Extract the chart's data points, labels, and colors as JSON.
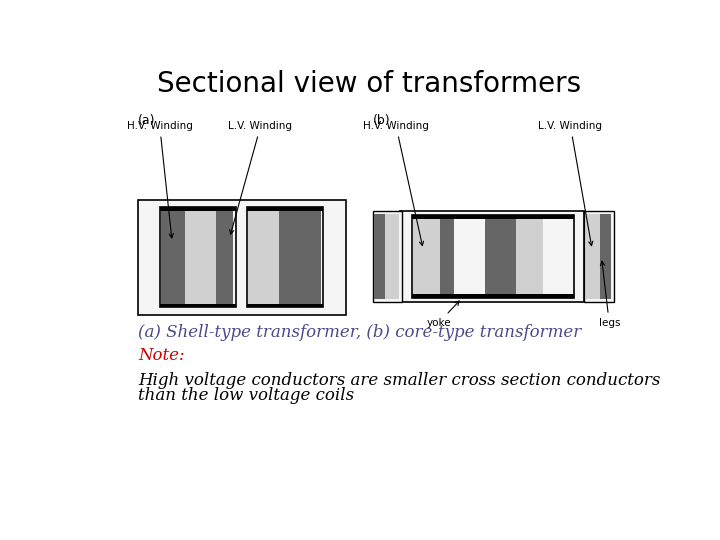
{
  "title": "Sectional view of transformers",
  "title_fontsize": 20,
  "note_label": "Note:",
  "note_color": "#cc0000",
  "note_fontsize": 12,
  "note_text": "High voltage conductors are smaller cross section conductors\nthan the low voltage coils",
  "note_text_fontsize": 12,
  "label_a": "(a)",
  "label_b": "(b)",
  "caption": "(a) Shell-type transformer, (b) core-type transformer",
  "caption_fontsize": 12,
  "bg_color": "#ffffff",
  "light_fill": "#f5f5f5",
  "dark_gray": "#666666",
  "light_gray": "#d0d0d0",
  "black": "#000000",
  "caption_color": "#4a4a8a"
}
